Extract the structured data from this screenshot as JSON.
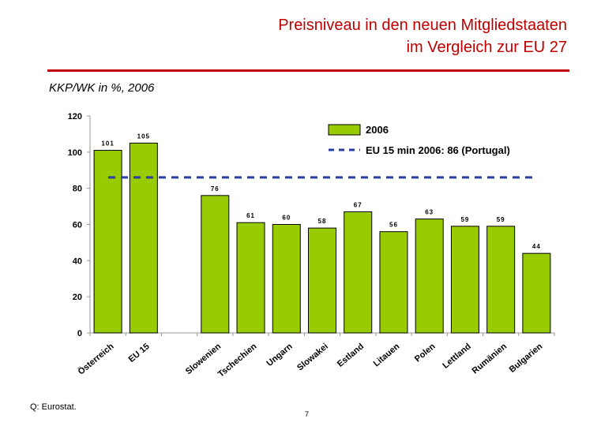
{
  "header": {
    "title_line1": "Preisniveau in den neuen Mitgliedstaaten",
    "title_line2": "im Vergleich zur EU 27",
    "subtitle": "KKP/WK in %, 2006"
  },
  "footer": {
    "source": "Q: Eurostat.",
    "page": "7"
  },
  "colors": {
    "bar": "#99cc00",
    "bar_stroke": "#000000",
    "reference_line": "#2a3fa8",
    "title": "#c00000"
  },
  "chart_data": {
    "type": "bar",
    "categories": [
      "Österreich",
      "EU 15",
      "",
      "Slowenien",
      "Tschechien",
      "Ungarn",
      "Slowakei",
      "Estland",
      "Litauen",
      "Polen",
      "Lettland",
      "Rumänien",
      "Bulgarien"
    ],
    "values": [
      101,
      105,
      null,
      76,
      61,
      60,
      58,
      67,
      56,
      63,
      59,
      59,
      44
    ],
    "value_labels": [
      "101",
      "105",
      "",
      "76",
      "61",
      "60",
      "58",
      "67",
      "56",
      "63",
      "59",
      "59",
      "44"
    ],
    "series_name": "2006",
    "reference_line": {
      "value": 86,
      "label": "EU 15 min 2006: 86 (Portugal)"
    },
    "ylim": [
      0,
      120
    ],
    "yticks": [
      "0",
      "20",
      "40",
      "60",
      "80",
      "100",
      "120"
    ],
    "ytick_values": [
      0,
      20,
      40,
      60,
      80,
      100,
      120
    ],
    "legend_position": "top-right",
    "xlabel": "",
    "ylabel": ""
  }
}
